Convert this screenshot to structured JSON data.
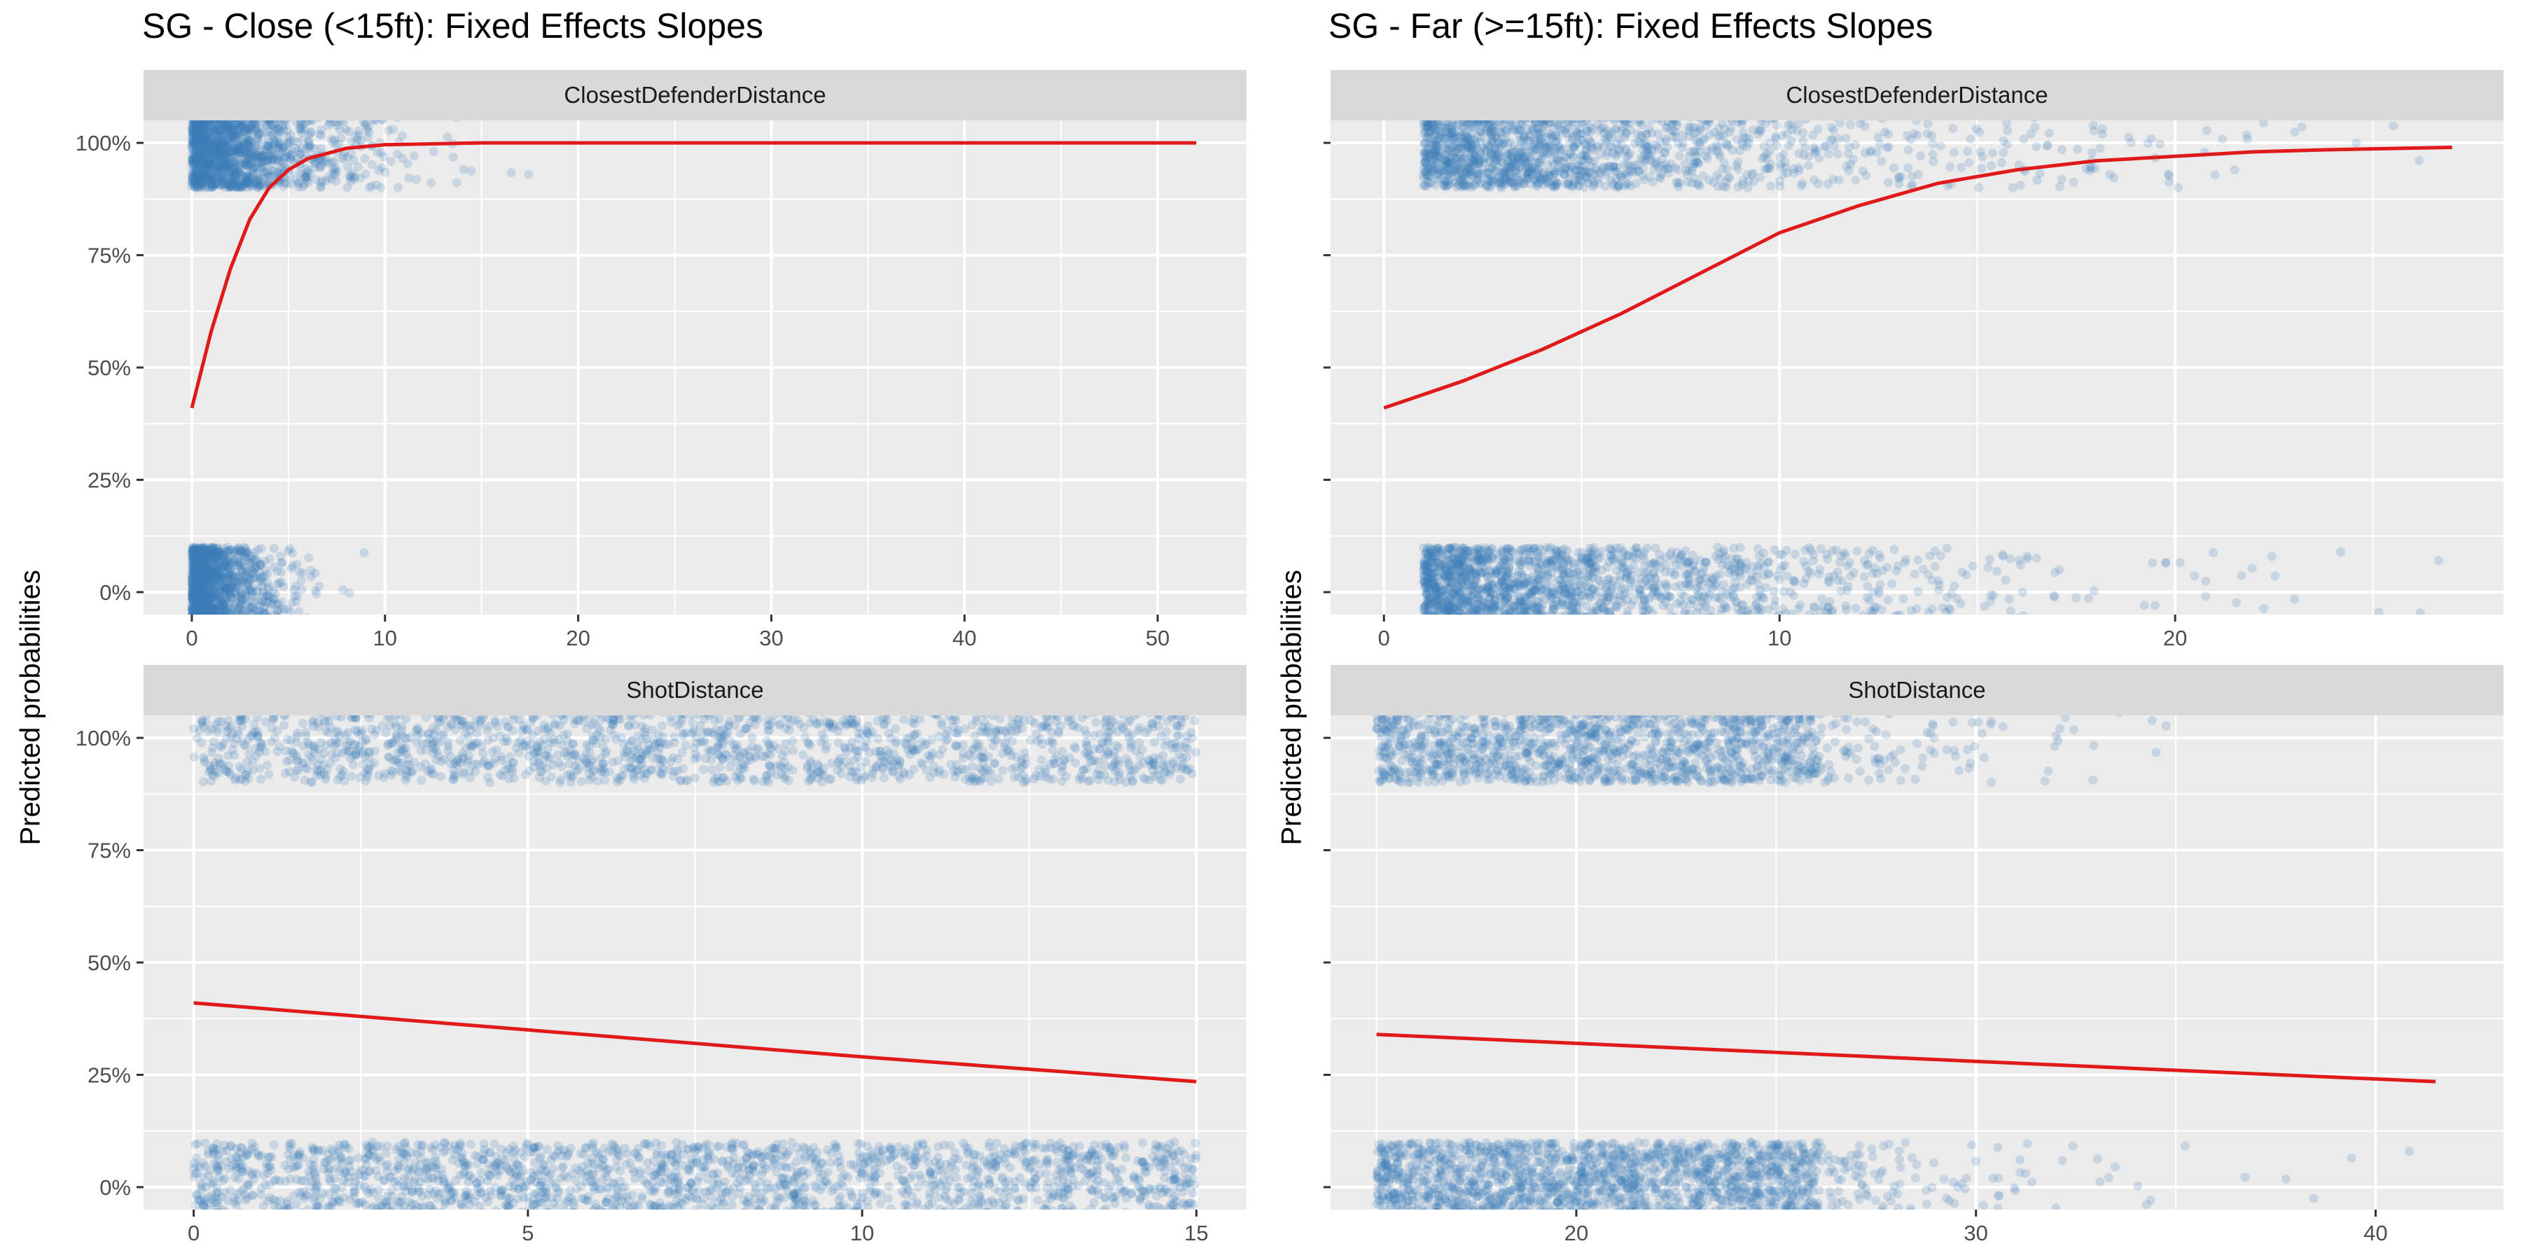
{
  "left_title": "SG - Close (<15ft): Fixed Effects Slopes",
  "right_title": "SG - Far (>=15ft): Fixed Effects Slopes",
  "y_label": "Predicted probabilities",
  "colors": {
    "panel_bg": "#ebebeb",
    "strip_bg": "#d9d9d9",
    "grid": "#ffffff",
    "points": "#3a7fbb",
    "curve": "#e0191b"
  },
  "chart_data": [
    {
      "type": "line",
      "title": "SG - Close (<15ft): Fixed Effects Slopes",
      "facet": "ClosestDefenderDistance",
      "xlabel": "",
      "ylabel": "Predicted probabilities",
      "xlim": [
        -2.5,
        54.6
      ],
      "ylim": [
        -0.05,
        1.05
      ],
      "x_ticks": [
        0,
        10,
        20,
        30,
        40,
        50
      ],
      "y_ticks": [
        0,
        0.25,
        0.5,
        0.75,
        1.0
      ],
      "y_tick_labels": [
        "0%",
        "25%",
        "50%",
        "75%",
        "100%"
      ],
      "grid": true,
      "series": [
        {
          "kind": "fitted-curve",
          "x": [
            0,
            1,
            2,
            3,
            4,
            5,
            6,
            8,
            10,
            15,
            20,
            30,
            40,
            52
          ],
          "y": [
            0.41,
            0.58,
            0.72,
            0.83,
            0.9,
            0.94,
            0.965,
            0.988,
            0.996,
            1.0,
            1.0,
            1.0,
            1.0,
            1.0
          ]
        },
        {
          "kind": "jittered-points",
          "outcome": "make",
          "x_range": [
            0,
            52
          ]
        },
        {
          "kind": "jittered-points",
          "outcome": "miss",
          "x_range": [
            0,
            14
          ]
        }
      ]
    },
    {
      "type": "line",
      "title": "SG - Far (>=15ft): Fixed Effects Slopes",
      "facet": "ClosestDefenderDistance",
      "xlabel": "",
      "ylabel": "Predicted probabilities",
      "xlim": [
        -1.35,
        28.3
      ],
      "ylim": [
        -0.05,
        1.05
      ],
      "x_ticks": [
        0,
        10,
        20
      ],
      "y_ticks": [
        0,
        0.25,
        0.5,
        0.75,
        1.0
      ],
      "y_tick_labels": [
        "0%",
        "25%",
        "50%",
        "75%",
        "100%"
      ],
      "grid": true,
      "series": [
        {
          "kind": "fitted-curve",
          "x": [
            0,
            2,
            4,
            6,
            8,
            10,
            12,
            14,
            16,
            18,
            20,
            22,
            24,
            27
          ],
          "y": [
            0.41,
            0.47,
            0.54,
            0.62,
            0.71,
            0.8,
            0.86,
            0.91,
            0.94,
            0.96,
            0.97,
            0.98,
            0.985,
            0.99
          ]
        },
        {
          "kind": "jittered-points",
          "outcome": "make",
          "x_range": [
            0,
            27
          ]
        },
        {
          "kind": "jittered-points",
          "outcome": "miss",
          "x_range": [
            0,
            27
          ]
        }
      ]
    },
    {
      "type": "line",
      "title": "",
      "facet": "ShotDistance",
      "xlabel": "",
      "ylabel": "Predicted probabilities",
      "xlim": [
        -0.75,
        15.75
      ],
      "ylim": [
        -0.05,
        1.05
      ],
      "x_ticks": [
        0,
        5,
        10,
        15
      ],
      "y_ticks": [
        0,
        0.25,
        0.5,
        0.75,
        1.0
      ],
      "y_tick_labels": [
        "0%",
        "25%",
        "50%",
        "75%",
        "100%"
      ],
      "grid": true,
      "series": [
        {
          "kind": "fitted-curve",
          "x": [
            0,
            5,
            10,
            15
          ],
          "y": [
            0.41,
            0.35,
            0.29,
            0.235
          ]
        },
        {
          "kind": "jittered-points",
          "outcome": "make",
          "x_range": [
            0,
            15
          ]
        },
        {
          "kind": "jittered-points",
          "outcome": "miss",
          "x_range": [
            0,
            15
          ]
        }
      ]
    },
    {
      "type": "line",
      "title": "",
      "facet": "ShotDistance",
      "xlabel": "",
      "ylabel": "Predicted probabilities",
      "xlim": [
        13.85,
        43.2
      ],
      "ylim": [
        -0.05,
        1.05
      ],
      "x_ticks": [
        20,
        30,
        40
      ],
      "y_ticks": [
        0,
        0.25,
        0.5,
        0.75,
        1.0
      ],
      "y_tick_labels": [
        "0%",
        "25%",
        "50%",
        "75%",
        "100%"
      ],
      "grid": true,
      "series": [
        {
          "kind": "fitted-curve",
          "x": [
            15,
            20,
            25,
            30,
            35,
            41.5
          ],
          "y": [
            0.34,
            0.32,
            0.3,
            0.28,
            0.26,
            0.235
          ]
        },
        {
          "kind": "jittered-points",
          "outcome": "make",
          "x_range": [
            15,
            40
          ]
        },
        {
          "kind": "jittered-points",
          "outcome": "miss",
          "x_range": [
            15,
            41
          ]
        }
      ]
    }
  ]
}
